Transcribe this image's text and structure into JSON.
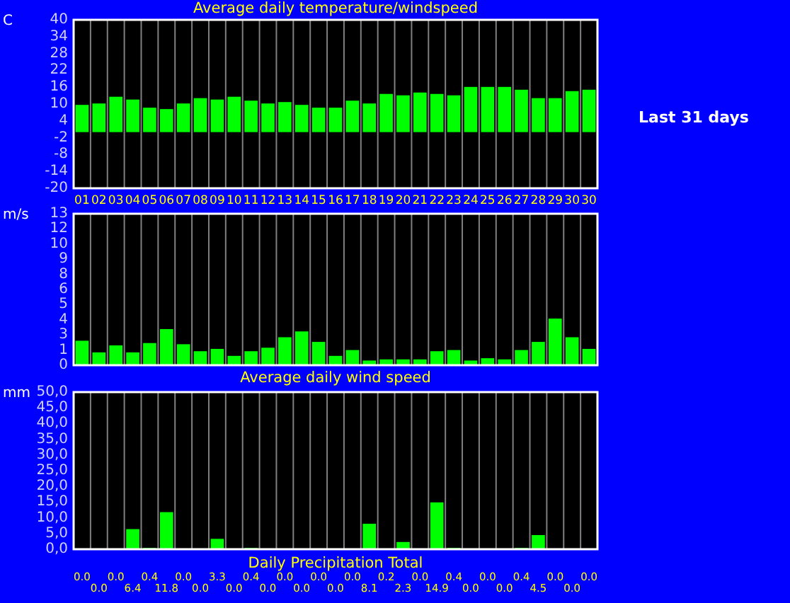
{
  "chart_data": [
    {
      "type": "bar",
      "title": "Average daily temperature/windspeed",
      "ylabel": "C",
      "annotations": [
        "Last 31 days"
      ],
      "categories": [
        "01",
        "02",
        "03",
        "04",
        "05",
        "06",
        "07",
        "08",
        "09",
        "10",
        "11",
        "12",
        "13",
        "14",
        "15",
        "16",
        "17",
        "18",
        "19",
        "20",
        "21",
        "22",
        "23",
        "24",
        "25",
        "26",
        "27",
        "28",
        "29",
        "30",
        "30"
      ],
      "values": [
        9.7,
        10.2,
        12.6,
        11.6,
        8.7,
        8.2,
        10.2,
        12.1,
        11.6,
        12.6,
        11.2,
        10.2,
        10.7,
        9.7,
        8.7,
        8.7,
        11.2,
        10.2,
        13.6,
        13.1,
        14.1,
        13.6,
        13.1,
        16.1,
        16.1,
        16.1,
        15.1,
        12.1,
        12.1,
        14.6,
        15.1
      ],
      "color": "#00ff00",
      "ylim": [
        -20,
        40
      ],
      "yticks": [
        -20,
        -14,
        -8,
        -2,
        4,
        10,
        16,
        22,
        28,
        34,
        40
      ],
      "grid": "x"
    },
    {
      "type": "bar",
      "title": "Average daily wind speed",
      "ylabel": "m/s",
      "categories": [
        null,
        null,
        null,
        null,
        null,
        null,
        null,
        null,
        null,
        null,
        null,
        null,
        null,
        null,
        null,
        null,
        null,
        null,
        null,
        null,
        null,
        null,
        null,
        null,
        null,
        null,
        null,
        null,
        null,
        null,
        null
      ],
      "values": [
        2.1,
        1.1,
        1.7,
        1.1,
        1.9,
        3.1,
        1.8,
        1.2,
        1.4,
        0.8,
        1.2,
        1.5,
        2.4,
        2.9,
        2.0,
        0.8,
        1.3,
        0.4,
        0.5,
        0.5,
        0.5,
        1.2,
        1.3,
        0.4,
        0.6,
        0.5,
        1.3,
        2.0,
        4.0,
        2.4,
        1.4
      ],
      "color": "#00ff00",
      "ylim": [
        0,
        13
      ],
      "yticks": [
        0,
        {
          "value": 1.3,
          "label": "1"
        },
        {
          "value": 2.6,
          "label": "3"
        },
        {
          "value": 3.9,
          "label": "4"
        },
        {
          "value": 5.2,
          "label": "5"
        },
        {
          "value": 6.5,
          "label": "6"
        },
        {
          "value": 7.8,
          "label": "8"
        },
        {
          "value": 9.1,
          "label": "9"
        },
        {
          "value": 10.4,
          "label": "10"
        },
        {
          "value": 11.7,
          "label": "12"
        },
        13
      ],
      "grid": "x",
      "tick_labels": "y"
    },
    {
      "type": "bar",
      "title": "Daily Precipitation Total",
      "ylabel": "mm",
      "categories": [
        null,
        null,
        null,
        null,
        null,
        null,
        null,
        null,
        null,
        null,
        null,
        null,
        null,
        null,
        null,
        null,
        null,
        null,
        null,
        null,
        null,
        null,
        null,
        null,
        null,
        null,
        null,
        null,
        null,
        null,
        null
      ],
      "values": [
        0.0,
        0.0,
        0.0,
        6.4,
        0.4,
        11.8,
        0.0,
        0.0,
        3.3,
        0.0,
        0.4,
        0.0,
        0.0,
        0.0,
        0.0,
        0.0,
        0.0,
        8.1,
        0.2,
        2.3,
        0.0,
        14.9,
        0.4,
        0.0,
        0.0,
        0.0,
        0.4,
        4.5,
        0.0,
        0.0,
        0.0
      ],
      "value_labels": [
        "0.0",
        "0.0",
        "0.0",
        "6.4",
        "0.4",
        "11.8",
        "0.0",
        "0.0",
        "3.3",
        "0.0",
        "0.4",
        "0.0",
        "0.0",
        "0.0",
        "0.0",
        "0.0",
        "0.0",
        "8.1",
        "0.2",
        "2.3",
        "0.0",
        "14.9",
        "0.4",
        "0.0",
        "0.0",
        "0.0",
        "0.4",
        "4.5",
        "0.0",
        "0.0",
        "0.0"
      ],
      "color": "#00ff00",
      "ylim": [
        0,
        50
      ],
      "yticks": [
        {
          "value": 0,
          "label": "0,0"
        },
        {
          "value": 5,
          "label": "5,0"
        },
        {
          "value": 10,
          "label": "10,0"
        },
        {
          "value": 15,
          "label": "15,0"
        },
        {
          "value": 20,
          "label": "20,0"
        },
        {
          "value": 25,
          "label": "25,0"
        },
        {
          "value": 30,
          "label": "30,0"
        },
        {
          "value": 35,
          "label": "35,0"
        },
        {
          "value": 40,
          "label": "40,0"
        },
        {
          "value": 45,
          "label": "45,0"
        },
        {
          "value": 50,
          "label": "50,0"
        }
      ],
      "grid": "x",
      "tick_labels": "y"
    }
  ]
}
